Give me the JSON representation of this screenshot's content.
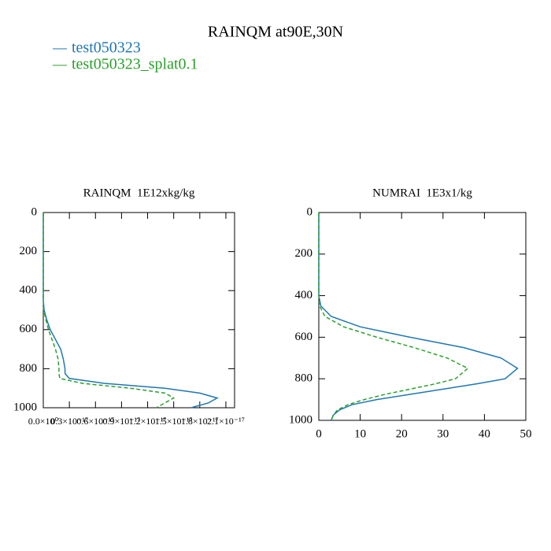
{
  "title": "RAINQM at90E,30N",
  "chart_data": [
    {
      "type": "line",
      "title": "RAINQM  1E12xkg/kg",
      "y": [
        0,
        100,
        200,
        300,
        400,
        450,
        500,
        550,
        600,
        650,
        700,
        750,
        800,
        825,
        850,
        875,
        900,
        925,
        950,
        975,
        1000
      ],
      "ylim": [
        0,
        1000
      ],
      "yticks": [
        0,
        200,
        400,
        600,
        800,
        1000
      ],
      "yinvert": true,
      "xlim": [
        0,
        2.2e-17
      ],
      "xticks": [
        {
          "value": 0,
          "label": "0.0×10⁰"
        },
        {
          "value": 3e-18,
          "label": "0.3×10⁻¹⁷"
        },
        {
          "value": 6e-18,
          "label": "0.6×10⁻¹⁷"
        },
        {
          "value": 9e-18,
          "label": "0.9×10⁻¹⁷"
        },
        {
          "value": 1.2e-17,
          "label": "1.2×10⁻¹⁷"
        },
        {
          "value": 1.5e-17,
          "label": "1.5×10⁻¹⁷"
        },
        {
          "value": 1.8e-17,
          "label": "1.8×10⁻¹⁷"
        },
        {
          "value": 2.1e-17,
          "label": "2.1×10⁻¹⁷"
        }
      ],
      "series": [
        {
          "name": "test050323",
          "color": "#1f77b4",
          "style": "solid",
          "values": [
            0,
            0,
            0,
            0,
            0,
            0,
            1e-19,
            4e-19,
            8e-19,
            1.4e-18,
            2e-18,
            2.3e-18,
            2.5e-18,
            2.5e-18,
            3e-18,
            7e-18,
            1.4e-17,
            1.8e-17,
            2e-17,
            1.9e-17,
            1.7e-17
          ]
        },
        {
          "name": "test050323_splat0.1",
          "color": "#2ca02c",
          "style": "dashed",
          "values": [
            0,
            0,
            0,
            0,
            0,
            0,
            5e-20,
            3e-19,
            6e-19,
            1e-18,
            1.4e-18,
            1.7e-18,
            1.8e-18,
            1.8e-18,
            1.9e-18,
            4.5e-18,
            1e-17,
            1.4e-17,
            1.5e-17,
            1.4e-17,
            1.3e-17
          ]
        }
      ]
    },
    {
      "type": "line",
      "title": "NUMRAI  1E3x1/kg",
      "y": [
        0,
        100,
        200,
        300,
        400,
        450,
        500,
        550,
        600,
        650,
        700,
        750,
        800,
        825,
        850,
        875,
        900,
        925,
        950,
        975,
        1000
      ],
      "ylim": [
        0,
        1000
      ],
      "yticks": [
        0,
        200,
        400,
        600,
        800,
        1000
      ],
      "yinvert": true,
      "xlim": [
        0,
        50
      ],
      "xticks": [
        0,
        10,
        20,
        30,
        40,
        50
      ],
      "series": [
        {
          "name": "test050323",
          "color": "#1f77b4",
          "style": "solid",
          "values": [
            0,
            0,
            0,
            0,
            0,
            0.5,
            3,
            10,
            22,
            35,
            44,
            48,
            45,
            38,
            30,
            22,
            14,
            8,
            5,
            3.5,
            3
          ]
        },
        {
          "name": "test050323_splat0.1",
          "color": "#2ca02c",
          "style": "dashed",
          "values": [
            0,
            0,
            0,
            0,
            0,
            0.2,
            1.5,
            6,
            14,
            23,
            31,
            36,
            33,
            28,
            22,
            16,
            11,
            7,
            4.5,
            3.5,
            3
          ]
        }
      ]
    }
  ]
}
